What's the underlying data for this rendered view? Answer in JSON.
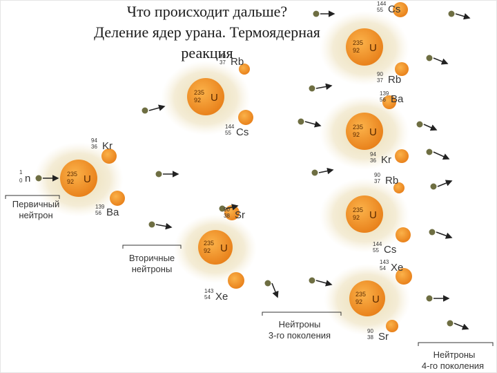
{
  "title": {
    "line1": "Что происходит дальше?",
    "line2": "Деление ядер урана. Термоядерная",
    "line3": "реакция"
  },
  "colors": {
    "nucleus": "#f5901e",
    "glow": "#efe2bd",
    "neutron": "#6e6e42",
    "text": "#333333"
  },
  "uranium": {
    "mass": "235",
    "charge": "92",
    "symbol": "U"
  },
  "neutron_source": {
    "mass": "1",
    "charge": "0",
    "symbol": "n"
  },
  "labels": {
    "primary_neutron": [
      "Первичный",
      "нейтрон"
    ],
    "secondary_neutrons": [
      "Вторичные",
      "нейтроны"
    ],
    "third_gen_neutrons": [
      "Нейтроны",
      "3-го поколения"
    ],
    "fourth_gen_neutrons": [
      "Нейтроны",
      "4-го поколения"
    ]
  },
  "fragments": [
    {
      "id": "rb-1",
      "mass": "90",
      "charge": "37",
      "symbol": "Rb"
    },
    {
      "id": "cs-1",
      "mass": "144",
      "charge": "55",
      "symbol": "Cs"
    },
    {
      "id": "kr-1",
      "mass": "94",
      "charge": "36",
      "symbol": "Kr"
    },
    {
      "id": "ba-1",
      "mass": "139",
      "charge": "56",
      "symbol": "Ba"
    },
    {
      "id": "sr-1",
      "mass": "90",
      "charge": "38",
      "symbol": "Sr"
    },
    {
      "id": "xe-1",
      "mass": "143",
      "charge": "54",
      "symbol": "Xe"
    },
    {
      "id": "cs-2",
      "mass": "144",
      "charge": "55",
      "symbol": "Cs"
    },
    {
      "id": "rb-2",
      "mass": "90",
      "charge": "37",
      "symbol": "Rb"
    },
    {
      "id": "ba-2",
      "mass": "139",
      "charge": "56",
      "symbol": "Ba"
    },
    {
      "id": "kr-2",
      "mass": "94",
      "charge": "36",
      "symbol": "Kr"
    },
    {
      "id": "rb-3",
      "mass": "90",
      "charge": "37",
      "symbol": "Rb"
    },
    {
      "id": "cs-3",
      "mass": "144",
      "charge": "55",
      "symbol": "Cs"
    },
    {
      "id": "xe-2",
      "mass": "143",
      "charge": "54",
      "symbol": "Xe"
    },
    {
      "id": "sr-2",
      "mass": "90",
      "charge": "38",
      "symbol": "Sr"
    }
  ]
}
